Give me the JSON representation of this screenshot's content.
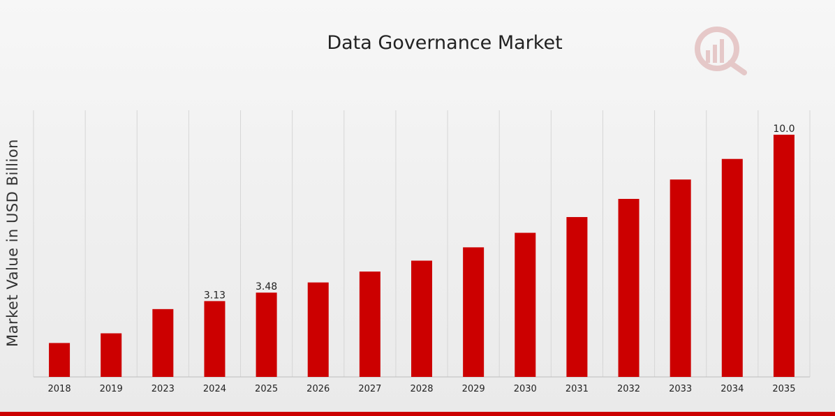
{
  "chart_data": {
    "type": "bar",
    "title": "Data Governance Market",
    "ylabel": "Market Value in USD Billion",
    "xlabel": "",
    "categories": [
      "2018",
      "2019",
      "2023",
      "2024",
      "2025",
      "2026",
      "2027",
      "2028",
      "2029",
      "2030",
      "2031",
      "2032",
      "2033",
      "2034",
      "2035"
    ],
    "values": [
      1.4,
      1.8,
      2.8,
      3.13,
      3.48,
      3.9,
      4.35,
      4.8,
      5.35,
      5.95,
      6.6,
      7.35,
      8.15,
      9.0,
      10.0
    ],
    "data_labels": {
      "2024": "3.13",
      "2025": "3.48",
      "2035": "10.0"
    },
    "ylim": [
      0,
      11
    ],
    "grid": "vertical",
    "legend": "none",
    "colors": {
      "bar": "#cc0000",
      "accent": "#cc0000"
    }
  },
  "watermark_icon": "market-research-logo-icon"
}
